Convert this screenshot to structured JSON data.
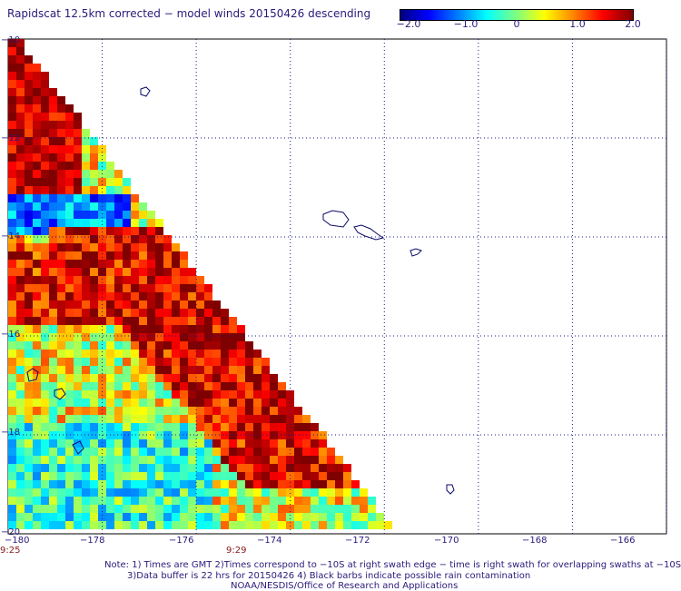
{
  "title": "Rapidscat 12.5km corrected − model winds 20150426 descending",
  "colorbar": {
    "ticks": [
      "−2.0",
      "−1.0",
      "0",
      "1.0",
      "2.0"
    ],
    "range": [
      -2.0,
      2.0
    ]
  },
  "axes": {
    "x_labels": [
      "−180",
      "−178",
      "−176",
      "−174",
      "−172",
      "−170",
      "−168",
      "−166"
    ],
    "y_labels": [
      "−10",
      "−12",
      "−14",
      "−16",
      "−18",
      "−20"
    ],
    "lon_range": [
      -180,
      -166
    ],
    "lat_range": [
      -20,
      -10
    ]
  },
  "times": [
    "9:25",
    "9:29"
  ],
  "notes": [
    "Note: 1) Times are GMT 2)Times correspond to −10S at right swath edge − time is right swath for overlapping swaths at −10S",
    "3)Data buffer is 22 hrs for 20150426 4) Black barbs indicate possible rain contamination",
    "NOAA/NESDIS/Office of Research and Applications"
  ],
  "colors": {
    "text": "#2a1a7a",
    "grid": "#1a1a8a",
    "coast": "#0a0a6a"
  }
}
